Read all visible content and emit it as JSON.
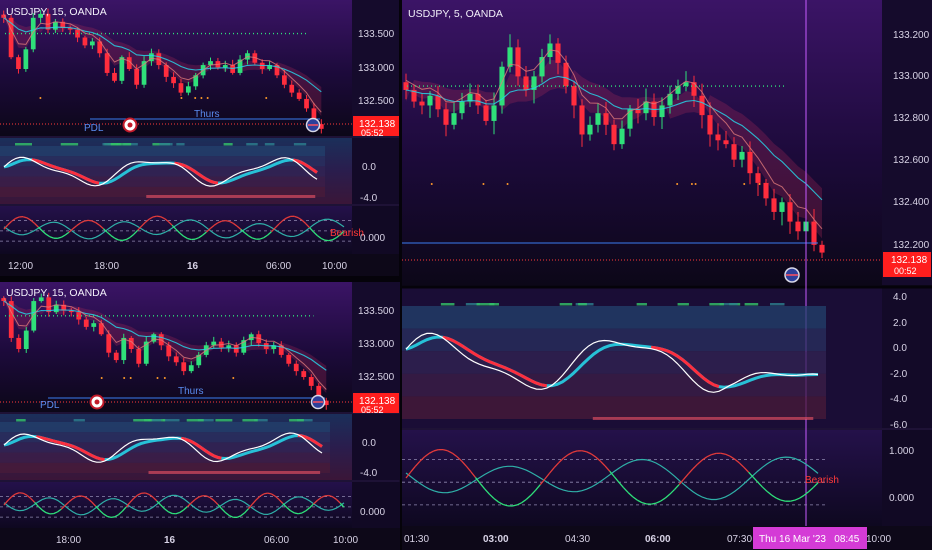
{
  "colors": {
    "bg": "#10081f",
    "bull": "#2fe07a",
    "bear": "#ff2d3d",
    "ema_cyan": "#27d3e6",
    "signal_white": "#ffffff",
    "price_badge": "#ff1e1e",
    "crosshair": "#c75bff",
    "date_badge": "#d43bd6",
    "pdl_line": "#3a7df0"
  },
  "charts": {
    "tl": {
      "title": "USDJPY, 15, OANDA",
      "price_ticks": [
        "133.500",
        "133.000",
        "132.500"
      ],
      "price_badge": "132.138",
      "countdown": "05:52",
      "pdl_label": "PDL",
      "thurs_label": "Thurs",
      "osc_ticks": [
        "0.0",
        "-4.0"
      ],
      "vol_tick": "0.000",
      "bearish_label": "Bearish",
      "time_ticks": [
        "12:00",
        "18:00",
        "16",
        "06:00",
        "10:00"
      ]
    },
    "bl": {
      "title": "USDJPY, 15, OANDA",
      "price_ticks": [
        "133.500",
        "133.000",
        "132.500"
      ],
      "price_badge": "132.138",
      "countdown": "05:52",
      "pdl_label": "PDL",
      "thurs_label": "Thurs",
      "osc_ticks": [
        "0.0",
        "-4.0"
      ],
      "vol_tick": "0.000",
      "time_ticks": [
        "18:00",
        "16",
        "06:00",
        "10:00"
      ]
    },
    "right": {
      "title": "USDJPY, 5, OANDA",
      "price_ticks": [
        "133.200",
        "133.000",
        "132.800",
        "132.600",
        "132.400",
        "132.200"
      ],
      "price_badge": "132.138",
      "countdown": "00:52",
      "osc_ticks": [
        "4.0",
        "2.0",
        "0.0",
        "-2.0",
        "-4.0",
        "-6.0"
      ],
      "vol_ticks": [
        "1.000",
        "0.000"
      ],
      "bearish_label": "Bearish",
      "time_ticks": [
        "01:30",
        "03:00",
        "04:30",
        "06:00",
        "07:30",
        "10:00"
      ],
      "date_badge": "Thu 16 Mar '23   08:45"
    }
  },
  "chart_data": [
    {
      "type": "candlestick",
      "title": "USDJPY, 15, OANDA",
      "ylim": [
        132.1,
        133.7
      ],
      "x_ticks": [
        "12:00",
        "18:00",
        "16",
        "06:00",
        "10:00"
      ],
      "last_price": 132.138,
      "closes": [
        133.55,
        133.05,
        132.9,
        133.15,
        133.55,
        133.6,
        133.4,
        133.5,
        133.42,
        133.4,
        133.3,
        133.2,
        133.25,
        133.1,
        132.85,
        132.75,
        133.05,
        132.9,
        132.7,
        133.0,
        133.1,
        132.95,
        132.8,
        132.72,
        132.6,
        132.68,
        132.82,
        132.95,
        133.0,
        132.92,
        132.95,
        132.85,
        133.02,
        133.1,
        132.98,
        132.9,
        132.95,
        132.82,
        132.7,
        132.6,
        132.52,
        132.4,
        132.2,
        132.14
      ]
    },
    {
      "type": "candlestick",
      "title": "USDJPY, 5, OANDA",
      "ylim": [
        132.05,
        133.3
      ],
      "x_ticks": [
        "01:30",
        "03:00",
        "04:30",
        "06:00",
        "07:30",
        "10:00"
      ],
      "last_price": 132.138,
      "closes": [
        132.98,
        132.92,
        132.9,
        132.95,
        132.88,
        132.8,
        132.86,
        132.92,
        132.96,
        132.9,
        132.82,
        132.9,
        133.1,
        133.2,
        133.05,
        132.98,
        133.05,
        133.15,
        133.22,
        133.12,
        133.0,
        132.9,
        132.75,
        132.8,
        132.86,
        132.8,
        132.7,
        132.78,
        132.88,
        132.86,
        132.92,
        132.84,
        132.9,
        132.96,
        133.0,
        133.02,
        132.95,
        132.85,
        132.75,
        132.72,
        132.7,
        132.62,
        132.66,
        132.55,
        132.5,
        132.42,
        132.35,
        132.4,
        132.3,
        132.25,
        132.3,
        132.18,
        132.14
      ]
    }
  ]
}
